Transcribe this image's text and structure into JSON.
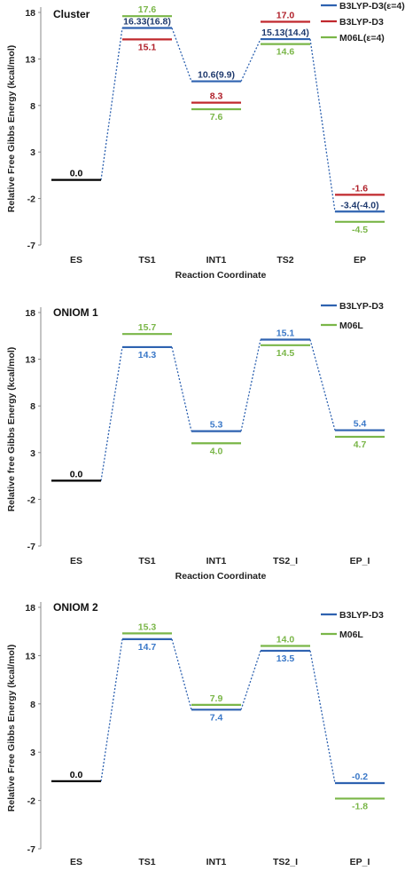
{
  "chart_data": [
    {
      "type": "line",
      "title": "Cluster",
      "xlabel": "Reaction Coordinate",
      "ylabel": "Relative Free Gibbs Energy (kcal/mol)",
      "ylim": [
        -7,
        18
      ],
      "yticks": [
        "18",
        "13",
        "8",
        "3",
        "-2",
        "-7"
      ],
      "categories": [
        "ES",
        "TS1",
        "INT1",
        "TS2",
        "EP"
      ],
      "legend_position": "top-right",
      "series": [
        {
          "name": "B3LYP-D3(ε=4)",
          "color": "#2e62b0",
          "values": [
            0.0,
            16.33,
            10.6,
            15.13,
            -3.4
          ],
          "labels": [
            "0.0",
            "16.33(16.8)",
            "10.6(9.9)",
            "15.13(14.4)",
            "-3.4(-4.0)"
          ],
          "label_color": "#1f3a6e"
        },
        {
          "name": "B3LYP-D3",
          "color": "#c0282d",
          "values": [
            null,
            15.1,
            8.3,
            17.0,
            -1.6
          ],
          "labels": [
            "",
            "15.1",
            "8.3",
            "17.0",
            "-1.6"
          ],
          "label_color": "#b0202a"
        },
        {
          "name": "M06L(ε=4)",
          "color": "#7ab648",
          "values": [
            null,
            17.6,
            7.6,
            14.6,
            -4.5
          ],
          "labels": [
            "",
            "17.6",
            "7.6",
            "14.6",
            "-4.5"
          ],
          "label_color": "#7ab648"
        }
      ]
    },
    {
      "type": "line",
      "title": "ONIOM 1",
      "xlabel": "Reaction Coordinate",
      "ylabel": "Relative free Gibbs Energy (kcal/mol)",
      "ylim": [
        -7,
        20
      ],
      "yticks": [
        "18",
        "13",
        "8",
        "3",
        "-2",
        "-7"
      ],
      "categories": [
        "ES",
        "TS1",
        "INT1",
        "TS2_I",
        "EP_I"
      ],
      "legend_position": "top-right",
      "series": [
        {
          "name": "B3LYP-D3",
          "color": "#2e62b0",
          "values": [
            0.0,
            14.3,
            5.3,
            15.1,
            5.4
          ],
          "labels": [
            "0.0",
            "14.3",
            "5.3",
            "15.1",
            "5.4"
          ],
          "label_color": "#3a78c8"
        },
        {
          "name": "M06L",
          "color": "#7ab648",
          "values": [
            null,
            15.7,
            4.0,
            14.5,
            4.7
          ],
          "labels": [
            "",
            "15.7",
            "4.0",
            "14.5",
            "4.7"
          ],
          "label_color": "#7ab648"
        }
      ]
    },
    {
      "type": "line",
      "title": "ONIOM 2",
      "xlabel": "",
      "ylabel": "Relative Free Gibbs Energy (kcal/mol)",
      "ylim": [
        -7,
        20
      ],
      "yticks": [
        "18",
        "13",
        "8",
        "3",
        "-2",
        "-7"
      ],
      "categories": [
        "ES",
        "TS1",
        "INT1",
        "TS2_I",
        "EP_I"
      ],
      "legend_position": "top-right",
      "series": [
        {
          "name": "B3LYP-D3",
          "color": "#2e62b0",
          "values": [
            0.0,
            14.7,
            7.4,
            13.5,
            -0.2
          ],
          "labels": [
            "0.0",
            "14.7",
            "7.4",
            "13.5",
            "-0.2"
          ],
          "label_color": "#3a78c8"
        },
        {
          "name": "M06L",
          "color": "#7ab648",
          "values": [
            null,
            15.3,
            7.9,
            14.0,
            -1.8
          ],
          "labels": [
            "",
            "15.3",
            "7.9",
            "14.0",
            "-1.8"
          ],
          "label_color": "#7ab648"
        }
      ]
    }
  ]
}
